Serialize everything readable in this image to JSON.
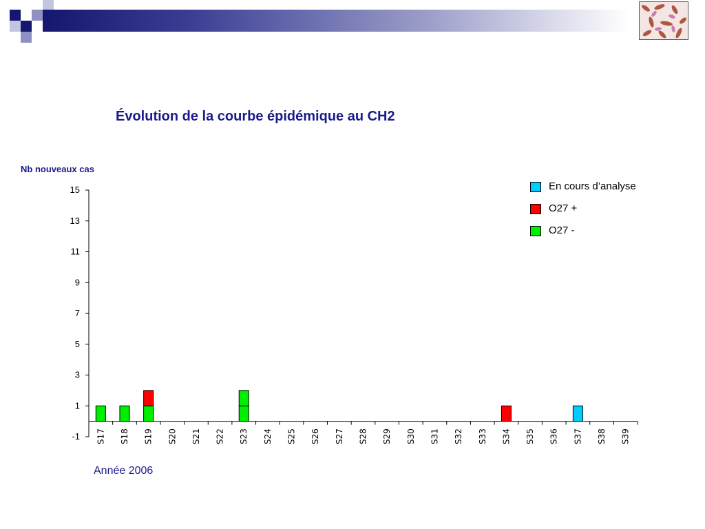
{
  "slide": {
    "decoration_colors": [
      "#15166f",
      "#8f90c2",
      "#c3c4e0"
    ]
  },
  "chart_data": {
    "type": "bar",
    "stacked": true,
    "title": "Évolution de la courbe épidémique au CH2",
    "ylabel": "Nb nouveaux cas",
    "xlabel": "Année 2006",
    "ylim": [
      -1,
      15
    ],
    "yticks": [
      -1,
      1,
      3,
      5,
      7,
      9,
      11,
      13,
      15
    ],
    "grid": false,
    "legend_position": "top-right",
    "categories": [
      "S17",
      "S18",
      "S19",
      "S20",
      "S21",
      "S22",
      "S23",
      "S24",
      "S25",
      "S26",
      "S27",
      "S28",
      "S29",
      "S30",
      "S31",
      "S32",
      "S33",
      "S34",
      "S35",
      "S36",
      "S37",
      "S38",
      "S39"
    ],
    "series": [
      {
        "name": "O27 -",
        "color": "#00ee00",
        "values": [
          1,
          1,
          1,
          0,
          0,
          0,
          2,
          0,
          0,
          0,
          0,
          0,
          0,
          0,
          0,
          0,
          0,
          0,
          0,
          0,
          0,
          0,
          0
        ]
      },
      {
        "name": "O27 +",
        "color": "#ff0000",
        "values": [
          0,
          0,
          1,
          0,
          0,
          0,
          0,
          0,
          0,
          0,
          0,
          0,
          0,
          0,
          0,
          0,
          0,
          1,
          0,
          0,
          0,
          0,
          0
        ]
      },
      {
        "name": "En cours d’analyse",
        "color": "#00ccff",
        "values": [
          0,
          0,
          0,
          0,
          0,
          0,
          0,
          0,
          0,
          0,
          0,
          0,
          0,
          0,
          0,
          0,
          0,
          0,
          0,
          0,
          1,
          0,
          0
        ]
      }
    ]
  }
}
